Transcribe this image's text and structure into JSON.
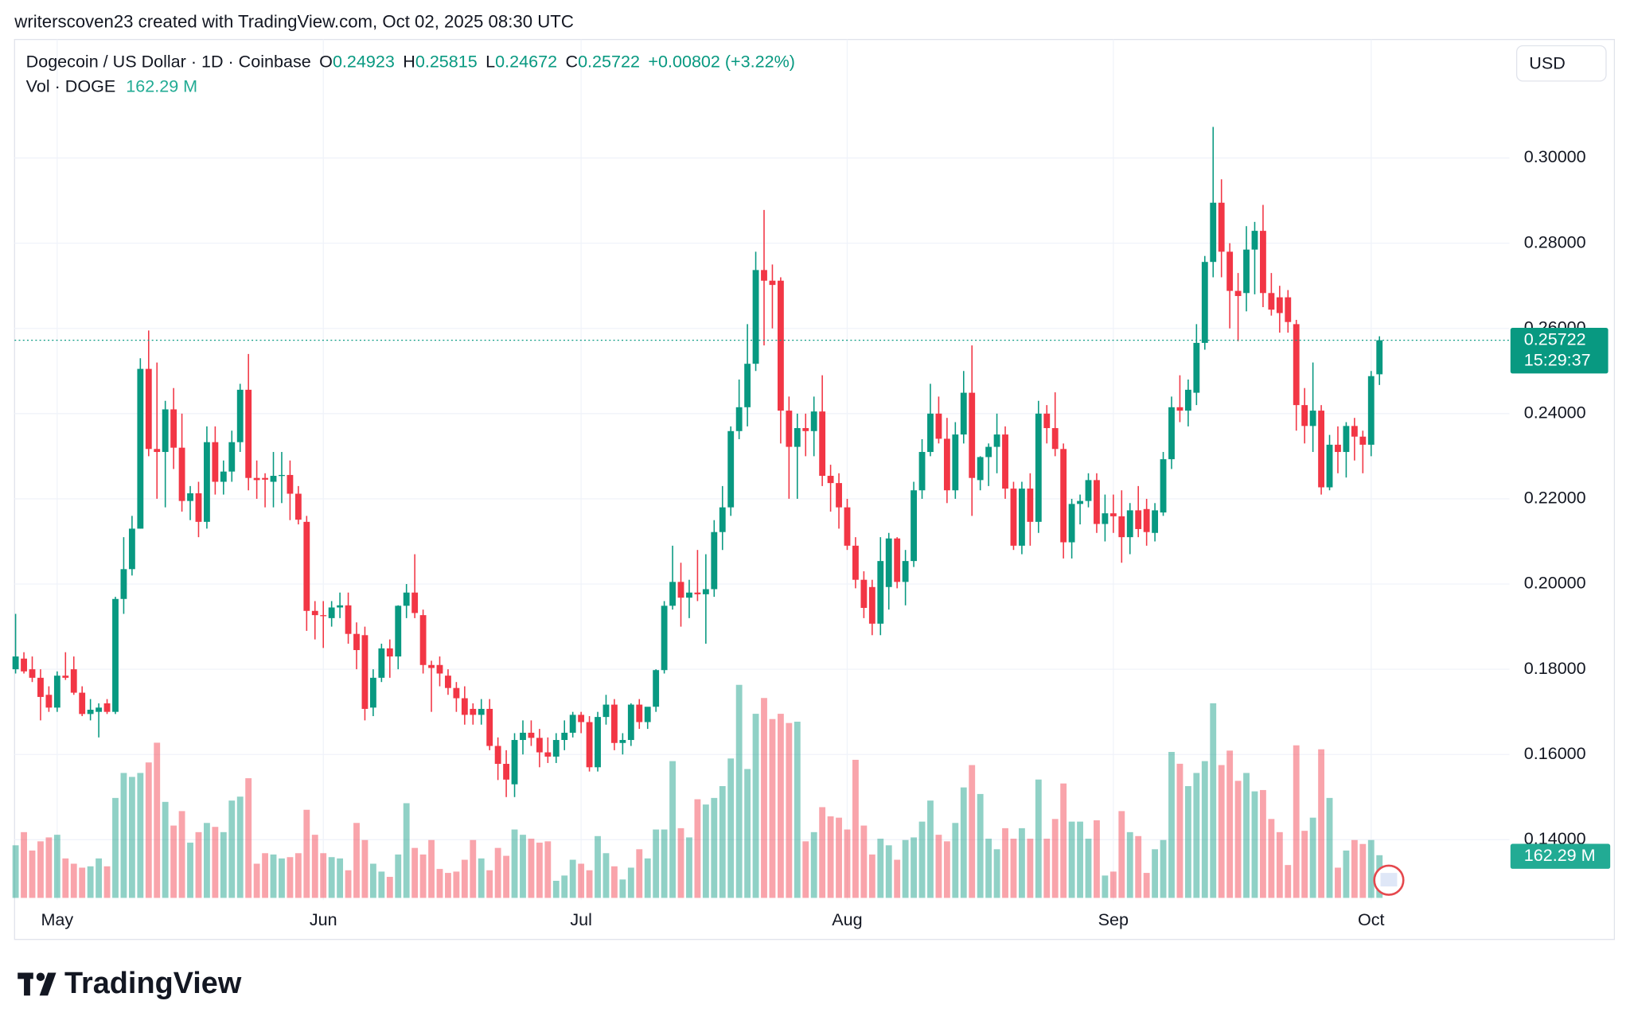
{
  "attribution": "writerscoven23 created with TradingView.com, Oct 02, 2025 08:30 UTC",
  "logo": "TradingView",
  "chart_data": {
    "type": "candlestick",
    "symbol": "Dogecoin / US Dollar · 1D · Coinbase",
    "ohlc_labels": [
      "O",
      "H",
      "L",
      "C"
    ],
    "change": "+0.00802 (+3.22%)",
    "volume_title": "Vol · DOGE",
    "volume_label": "162.29 M",
    "currency": "USD",
    "countdown": "15:29:37",
    "up_color": "#089981",
    "down_color": "#f23645",
    "ylim": [
      0.12634,
      0.32732
    ],
    "yticks": [
      {
        "value": 0.14,
        "label": "0.14000"
      },
      {
        "value": 0.16,
        "label": "0.16000"
      },
      {
        "value": 0.18,
        "label": "0.18000"
      },
      {
        "value": 0.2,
        "label": "0.20000"
      },
      {
        "value": 0.22,
        "label": "0.22000"
      },
      {
        "value": 0.24,
        "label": "0.24000"
      },
      {
        "value": 0.26,
        "label": "0.26000"
      },
      {
        "value": 0.28,
        "label": "0.28000"
      },
      {
        "value": 0.3,
        "label": "0.30000"
      }
    ],
    "grid": true,
    "categories": [
      null,
      null,
      null,
      null,
      null,
      "May",
      null,
      null,
      null,
      null,
      null,
      null,
      null,
      null,
      null,
      null,
      null,
      null,
      null,
      null,
      null,
      null,
      null,
      null,
      null,
      null,
      null,
      null,
      null,
      null,
      null,
      null,
      null,
      null,
      null,
      null,
      null,
      "Jun",
      null,
      null,
      null,
      null,
      null,
      null,
      null,
      null,
      null,
      null,
      null,
      null,
      null,
      null,
      null,
      null,
      null,
      null,
      null,
      null,
      null,
      null,
      null,
      null,
      null,
      null,
      null,
      null,
      null,
      null,
      "Jul",
      null,
      null,
      null,
      null,
      null,
      null,
      null,
      null,
      null,
      null,
      null,
      null,
      null,
      null,
      null,
      null,
      null,
      null,
      null,
      null,
      null,
      null,
      null,
      null,
      null,
      null,
      null,
      null,
      null,
      null,
      null,
      "Aug",
      null,
      null,
      null,
      null,
      null,
      null,
      null,
      null,
      null,
      null,
      null,
      null,
      null,
      null,
      null,
      null,
      null,
      null,
      null,
      null,
      null,
      null,
      null,
      null,
      null,
      null,
      null,
      null,
      null,
      null,
      null,
      "Sep",
      null,
      null,
      null,
      null,
      null,
      null,
      null,
      null,
      null,
      null,
      null,
      null,
      null,
      null,
      null,
      null,
      null,
      null,
      null,
      null,
      null,
      null,
      null,
      null,
      null,
      null,
      null,
      null,
      null,
      null,
      "Oct",
      null
    ],
    "open": [
      0.18,
      0.1825,
      0.18,
      0.178,
      0.174,
      0.171,
      0.1785,
      0.18,
      0.1745,
      0.1695,
      0.17,
      0.172,
      0.17,
      0.1965,
      0.2035,
      0.213,
      0.2505,
      0.2317,
      0.231,
      0.241,
      0.232,
      0.2195,
      0.2213,
      0.2146,
      0.2333,
      0.224,
      0.2264,
      0.2333,
      0.2456,
      0.2249,
      0.2249,
      0.224,
      0.2254,
      0.2256,
      0.2212,
      0.2146,
      0.1937,
      0.1927,
      0.192,
      0.1945,
      0.195,
      0.1883,
      0.188,
      0.171,
      0.178,
      0.1849,
      0.183,
      0.1949,
      0.198,
      0.1927,
      0.181,
      0.181,
      0.1785,
      0.1756,
      0.1732,
      0.1707,
      0.1693,
      0.1707,
      0.162,
      0.1578,
      0.153,
      0.1634,
      0.1651,
      0.1639,
      0.1605,
      0.1595,
      0.1634,
      0.1651,
      0.1693,
      0.1676,
      0.157,
      0.1688,
      0.1717,
      0.1627,
      0.1634,
      0.1717,
      0.1676,
      0.1712,
      0.1798,
      0.1949,
      0.2005,
      0.1968,
      0.198,
      0.1976,
      0.1988,
      0.2122,
      0.218,
      0.2359,
      0.2415,
      0.2517,
      0.2737,
      0.2712,
      0.2712,
      0.2407,
      0.2322,
      0.2366,
      0.2359,
      0.2405,
      0.2254,
      0.2237,
      0.218,
      0.209,
      0.201,
      0.1993,
      0.1907,
      0.1993,
      0.2107,
      0.2005,
      0.2054,
      0.222,
      0.231,
      0.24,
      0.2341,
      0.222,
      0.2351,
      0.2449,
      0.2244,
      0.2298,
      0.2322,
      0.2351,
      0.2224,
      0.209,
      0.2224,
      0.2146,
      0.24,
      0.2366,
      0.2317,
      0.2098,
      0.2188,
      0.2195,
      0.2244,
      0.2141,
      0.2166,
      0.2159,
      0.211,
      0.2173,
      0.2176,
      0.212,
      0.2168,
      0.2293,
      0.2415,
      0.2407,
      0.2449,
      0.2566,
      0.2756,
      0.2895,
      0.278,
      0.2688,
      0.2683,
      0.2785,
      0.2829,
      0.2683,
      0.2673,
      0.2673,
      0.261,
      0.242,
      0.2371,
      0.2407,
      0.2227,
      0.2327,
      0.231,
      0.2371,
      0.2346,
      0.2327,
      0.24923
    ],
    "high": [
      0.193,
      0.184,
      0.183,
      0.18,
      0.176,
      0.1795,
      0.184,
      0.183,
      0.176,
      0.173,
      0.172,
      0.173,
      0.197,
      0.211,
      0.216,
      0.253,
      0.2595,
      0.252,
      0.243,
      0.246,
      0.24,
      0.223,
      0.224,
      0.237,
      0.237,
      0.229,
      0.236,
      0.247,
      0.254,
      0.229,
      0.226,
      0.231,
      0.231,
      0.229,
      0.223,
      0.216,
      0.196,
      0.196,
      0.196,
      0.198,
      0.198,
      0.191,
      0.19,
      0.18,
      0.186,
      0.187,
      0.195,
      0.2,
      0.207,
      0.194,
      0.182,
      0.183,
      0.18,
      0.177,
      0.176,
      0.172,
      0.173,
      0.173,
      0.164,
      0.161,
      0.165,
      0.168,
      0.168,
      0.166,
      0.164,
      0.165,
      0.168,
      0.17,
      0.17,
      0.169,
      0.17,
      0.174,
      0.173,
      0.165,
      0.172,
      0.173,
      0.171,
      0.18,
      0.196,
      0.209,
      0.205,
      0.201,
      0.208,
      0.207,
      0.215,
      0.223,
      0.237,
      0.248,
      0.261,
      0.278,
      0.2878,
      0.275,
      0.272,
      0.244,
      0.24,
      0.24,
      0.244,
      0.249,
      0.228,
      0.226,
      0.22,
      0.211,
      0.203,
      0.201,
      0.211,
      0.212,
      0.211,
      0.208,
      0.224,
      0.234,
      0.247,
      0.244,
      0.239,
      0.238,
      0.25,
      0.256,
      0.23,
      0.233,
      0.24,
      0.237,
      0.224,
      0.224,
      0.226,
      0.243,
      0.242,
      0.245,
      0.233,
      0.22,
      0.221,
      0.226,
      0.226,
      0.221,
      0.221,
      0.222,
      0.219,
      0.223,
      0.22,
      0.219,
      0.231,
      0.244,
      0.249,
      0.248,
      0.261,
      0.277,
      0.3073,
      0.295,
      0.28,
      0.273,
      0.284,
      0.285,
      0.289,
      0.273,
      0.27,
      0.269,
      0.262,
      0.246,
      0.252,
      0.242,
      0.235,
      0.237,
      0.238,
      0.239,
      0.236,
      0.25,
      0.25815
    ],
    "low": [
      0.179,
      0.179,
      0.177,
      0.168,
      0.17,
      0.17,
      0.1775,
      0.174,
      0.169,
      0.168,
      0.164,
      0.1695,
      0.1695,
      0.193,
      0.202,
      0.213,
      0.23,
      0.22,
      0.218,
      0.227,
      0.217,
      0.215,
      0.211,
      0.213,
      0.221,
      0.221,
      0.224,
      0.231,
      0.222,
      0.22,
      0.218,
      0.218,
      0.219,
      0.215,
      0.214,
      0.189,
      0.187,
      0.185,
      0.19,
      0.192,
      0.186,
      0.18,
      0.168,
      0.169,
      0.177,
      0.178,
      0.18,
      0.192,
      0.192,
      0.179,
      0.17,
      0.176,
      0.174,
      0.17,
      0.167,
      0.167,
      0.167,
      0.161,
      0.154,
      0.15,
      0.15,
      0.16,
      0.162,
      0.157,
      0.158,
      0.158,
      0.161,
      0.164,
      0.165,
      0.156,
      0.156,
      0.167,
      0.161,
      0.16,
      0.162,
      0.166,
      0.166,
      0.17,
      0.179,
      0.194,
      0.19,
      0.192,
      0.196,
      0.186,
      0.197,
      0.208,
      0.216,
      0.234,
      0.237,
      0.25,
      0.256,
      0.26,
      0.233,
      0.22,
      0.22,
      0.23,
      0.23,
      0.223,
      0.217,
      0.213,
      0.208,
      0.199,
      0.192,
      0.188,
      0.188,
      0.194,
      0.199,
      0.195,
      0.204,
      0.22,
      0.23,
      0.233,
      0.219,
      0.22,
      0.233,
      0.216,
      0.222,
      0.223,
      0.226,
      0.22,
      0.208,
      0.207,
      0.209,
      0.212,
      0.233,
      0.23,
      0.206,
      0.206,
      0.214,
      0.218,
      0.212,
      0.21,
      0.212,
      0.205,
      0.207,
      0.211,
      0.209,
      0.21,
      0.216,
      0.227,
      0.238,
      0.237,
      0.242,
      0.255,
      0.272,
      0.272,
      0.26,
      0.257,
      0.264,
      0.268,
      0.265,
      0.263,
      0.259,
      0.259,
      0.236,
      0.233,
      0.231,
      0.221,
      0.222,
      0.226,
      0.225,
      0.229,
      0.226,
      0.23,
      0.24672
    ],
    "close": [
      0.183,
      0.1795,
      0.178,
      0.1735,
      0.171,
      0.1785,
      0.178,
      0.1745,
      0.1695,
      0.1705,
      0.171,
      0.17,
      0.1965,
      0.2035,
      0.213,
      0.2505,
      0.2317,
      0.231,
      0.241,
      0.232,
      0.2195,
      0.2213,
      0.2146,
      0.2333,
      0.224,
      0.2264,
      0.2333,
      0.2456,
      0.2249,
      0.2244,
      0.2245,
      0.2254,
      0.2256,
      0.2212,
      0.2151,
      0.1937,
      0.1927,
      0.1925,
      0.1945,
      0.195,
      0.1883,
      0.1845,
      0.1707,
      0.178,
      0.1849,
      0.183,
      0.1949,
      0.198,
      0.1932,
      0.181,
      0.1803,
      0.179,
      0.1756,
      0.1732,
      0.1693,
      0.1693,
      0.1707,
      0.162,
      0.1578,
      0.1541,
      0.1634,
      0.1651,
      0.1639,
      0.1605,
      0.1595,
      0.1634,
      0.1651,
      0.1693,
      0.1676,
      0.157,
      0.1688,
      0.1717,
      0.1627,
      0.1634,
      0.1717,
      0.1676,
      0.1712,
      0.1798,
      0.1949,
      0.2005,
      0.1968,
      0.198,
      0.1976,
      0.1988,
      0.2122,
      0.218,
      0.2359,
      0.2415,
      0.2517,
      0.2737,
      0.2712,
      0.2702,
      0.2407,
      0.2322,
      0.2366,
      0.2359,
      0.2405,
      0.2254,
      0.2237,
      0.218,
      0.209,
      0.201,
      0.1944,
      0.1907,
      0.2054,
      0.2107,
      0.2005,
      0.2054,
      0.222,
      0.231,
      0.24,
      0.2341,
      0.222,
      0.2351,
      0.2449,
      0.2249,
      0.2298,
      0.2322,
      0.2351,
      0.2224,
      0.209,
      0.2224,
      0.2146,
      0.24,
      0.2366,
      0.2317,
      0.2098,
      0.2188,
      0.2195,
      0.2244,
      0.2141,
      0.2166,
      0.2159,
      0.211,
      0.2173,
      0.2129,
      0.2122,
      0.2173,
      0.2293,
      0.2415,
      0.2407,
      0.2456,
      0.2566,
      0.2756,
      0.2895,
      0.278,
      0.2688,
      0.2676,
      0.2785,
      0.2829,
      0.2683,
      0.2644,
      0.2636,
      0.2615,
      0.242,
      0.2371,
      0.2407,
      0.2227,
      0.2327,
      0.231,
      0.2371,
      0.2346,
      0.2327,
      0.2488,
      0.25722
    ],
    "volume": [
      200,
      250,
      180,
      215,
      230,
      240,
      150,
      130,
      115,
      120,
      150,
      120,
      380,
      475,
      460,
      475,
      515,
      590,
      365,
      275,
      330,
      210,
      250,
      285,
      270,
      250,
      370,
      385,
      455,
      130,
      170,
      165,
      150,
      155,
      170,
      335,
      240,
      170,
      155,
      150,
      105,
      285,
      220,
      130,
      100,
      80,
      165,
      360,
      190,
      165,
      220,
      110,
      95,
      100,
      145,
      220,
      150,
      105,
      190,
      160,
      260,
      240,
      225,
      210,
      215,
      65,
      85,
      145,
      130,
      105,
      235,
      170,
      120,
      70,
      115,
      185,
      150,
      260,
      260,
      520,
      265,
      230,
      375,
      355,
      380,
      425,
      530,
      810,
      490,
      700,
      760,
      680,
      700,
      665,
      670,
      215,
      250,
      345,
      310,
      305,
      260,
      525,
      275,
      165,
      225,
      200,
      145,
      220,
      230,
      290,
      370,
      240,
      215,
      285,
      420,
      505,
      395,
      225,
      185,
      265,
      225,
      265,
      225,
      450,
      225,
      300,
      435,
      290,
      290,
      225,
      295,
      85,
      100,
      330,
      250,
      235,
      95,
      185,
      220,
      555,
      510,
      425,
      475,
      520,
      740,
      505,
      560,
      445,
      475,
      405,
      410,
      300,
      250,
      125,
      580,
      255,
      305,
      565,
      380,
      115,
      180,
      220,
      205,
      220,
      162.29
    ]
  }
}
